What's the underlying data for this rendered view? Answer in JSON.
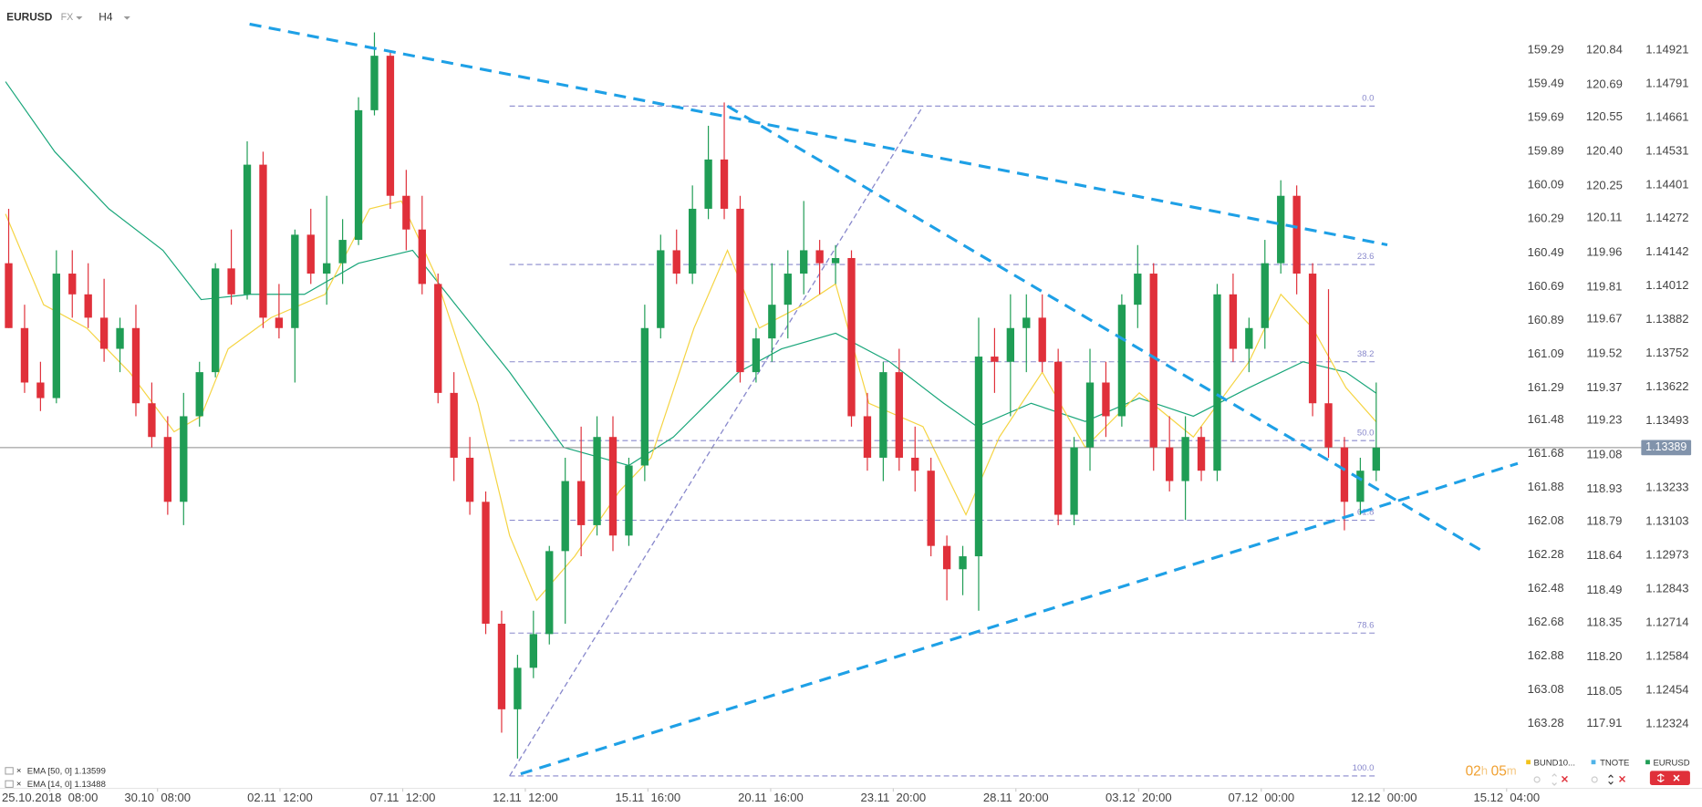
{
  "chart_data": {
    "type": "candlestick",
    "symbol": "EURUSD",
    "market": "FX",
    "timeframe": "H4",
    "up_color": "#1f9d55",
    "down_color": "#e0303a",
    "xlim": [
      -0.546,
      95.02
    ],
    "xticks": [
      {
        "value": 2.59,
        "label": "25.10.2018  08:00"
      },
      {
        "value": 9.36,
        "label": "30.10  08:00"
      },
      {
        "value": 17.06,
        "label": "02.11  12:00"
      },
      {
        "value": 24.78,
        "label": "07.11  12:00"
      },
      {
        "value": 32.49,
        "label": "12.11  12:00"
      },
      {
        "value": 40.2,
        "label": "15.11  16:00"
      },
      {
        "value": 47.92,
        "label": "20.11  16:00"
      },
      {
        "value": 55.63,
        "label": "23.11  20:00"
      },
      {
        "value": 63.34,
        "label": "28.11  20:00"
      },
      {
        "value": 71.06,
        "label": "03.12  20:00"
      },
      {
        "value": 78.77,
        "label": "07.12  00:00"
      },
      {
        "value": 86.48,
        "label": "12.12  00:00"
      },
      {
        "value": 94.2,
        "label": "15.12  04:00"
      }
    ],
    "ylim": [
      1.12075,
      1.15115
    ],
    "candles": [
      [
        1.141,
        1.1431,
        1.1385,
        1.1385
      ],
      [
        1.1385,
        1.1394,
        1.136,
        1.1364
      ],
      [
        1.1364,
        1.1372,
        1.1353,
        1.1358
      ],
      [
        1.1358,
        1.1415,
        1.1356,
        1.1406
      ],
      [
        1.1406,
        1.1415,
        1.1389,
        1.1398
      ],
      [
        1.1398,
        1.141,
        1.1385,
        1.1389
      ],
      [
        1.1389,
        1.1404,
        1.1372,
        1.1377
      ],
      [
        1.1377,
        1.1389,
        1.1368,
        1.1385
      ],
      [
        1.1385,
        1.1394,
        1.1351,
        1.1356
      ],
      [
        1.1356,
        1.1364,
        1.1339,
        1.1343
      ],
      [
        1.1343,
        1.1351,
        1.1313,
        1.1318
      ],
      [
        1.1318,
        1.136,
        1.1309,
        1.1351
      ],
      [
        1.1351,
        1.1372,
        1.1347,
        1.1368
      ],
      [
        1.1368,
        1.141,
        1.1366,
        1.1408
      ],
      [
        1.1408,
        1.1423,
        1.1394,
        1.1398
      ],
      [
        1.1398,
        1.1457,
        1.1396,
        1.1448
      ],
      [
        1.1448,
        1.1453,
        1.1385,
        1.1389
      ],
      [
        1.1389,
        1.1402,
        1.1381,
        1.1385
      ],
      [
        1.1385,
        1.1423,
        1.1364,
        1.1421
      ],
      [
        1.1421,
        1.1431,
        1.1402,
        1.1406
      ],
      [
        1.1406,
        1.1436,
        1.1394,
        1.141
      ],
      [
        1.141,
        1.1427,
        1.1402,
        1.1419
      ],
      [
        1.1419,
        1.1474,
        1.1417,
        1.1469
      ],
      [
        1.1469,
        1.1499,
        1.1467,
        1.149
      ],
      [
        1.149,
        1.1492,
        1.1431,
        1.1436
      ],
      [
        1.1436,
        1.1446,
        1.1415,
        1.1423
      ],
      [
        1.1423,
        1.1436,
        1.1398,
        1.1402
      ],
      [
        1.1402,
        1.1406,
        1.1356,
        1.136
      ],
      [
        1.136,
        1.1368,
        1.1326,
        1.1335
      ],
      [
        1.1335,
        1.1343,
        1.1313,
        1.1318
      ],
      [
        1.1318,
        1.1322,
        1.1267,
        1.1271
      ],
      [
        1.1271,
        1.1276,
        1.1229,
        1.1238
      ],
      [
        1.1238,
        1.1259,
        1.1219,
        1.1254
      ],
      [
        1.1254,
        1.1276,
        1.125,
        1.1267
      ],
      [
        1.1267,
        1.1301,
        1.1263,
        1.1299
      ],
      [
        1.1299,
        1.1335,
        1.1271,
        1.1326
      ],
      [
        1.1326,
        1.1347,
        1.1297,
        1.1309
      ],
      [
        1.1309,
        1.1351,
        1.1305,
        1.1343
      ],
      [
        1.1343,
        1.1351,
        1.1299,
        1.1305
      ],
      [
        1.1305,
        1.1335,
        1.1301,
        1.1332
      ],
      [
        1.1332,
        1.1394,
        1.1326,
        1.1385
      ],
      [
        1.1385,
        1.1421,
        1.1381,
        1.1415
      ],
      [
        1.1415,
        1.1423,
        1.1402,
        1.1406
      ],
      [
        1.1406,
        1.144,
        1.1402,
        1.1431
      ],
      [
        1.1431,
        1.1463,
        1.1427,
        1.145
      ],
      [
        1.145,
        1.1472,
        1.1427,
        1.1431
      ],
      [
        1.1431,
        1.1436,
        1.1364,
        1.1368
      ],
      [
        1.1368,
        1.1385,
        1.1364,
        1.1381
      ],
      [
        1.1381,
        1.141,
        1.1372,
        1.1394
      ],
      [
        1.1394,
        1.1415,
        1.1381,
        1.1406
      ],
      [
        1.1406,
        1.1434,
        1.1398,
        1.1415
      ],
      [
        1.1415,
        1.1419,
        1.1398,
        1.141
      ],
      [
        1.141,
        1.1417,
        1.1402,
        1.1412
      ],
      [
        1.1412,
        1.1415,
        1.1347,
        1.1351
      ],
      [
        1.1351,
        1.136,
        1.133,
        1.1335
      ],
      [
        1.1335,
        1.1372,
        1.1326,
        1.1368
      ],
      [
        1.1368,
        1.1377,
        1.133,
        1.1335
      ],
      [
        1.1335,
        1.1347,
        1.1322,
        1.133
      ],
      [
        1.133,
        1.1335,
        1.1297,
        1.1301
      ],
      [
        1.1301,
        1.1305,
        1.128,
        1.1292
      ],
      [
        1.1292,
        1.1301,
        1.1282,
        1.1297
      ],
      [
        1.1297,
        1.1389,
        1.1276,
        1.1374
      ],
      [
        1.1374,
        1.1385,
        1.136,
        1.1372
      ],
      [
        1.1372,
        1.1398,
        1.1351,
        1.1385
      ],
      [
        1.1385,
        1.1398,
        1.1368,
        1.1389
      ],
      [
        1.1389,
        1.1398,
        1.1368,
        1.1372
      ],
      [
        1.1372,
        1.1377,
        1.1309,
        1.1313
      ],
      [
        1.1313,
        1.1343,
        1.1309,
        1.1339
      ],
      [
        1.1339,
        1.1377,
        1.133,
        1.1364
      ],
      [
        1.1364,
        1.1372,
        1.1343,
        1.1351
      ],
      [
        1.1351,
        1.1398,
        1.1347,
        1.1394
      ],
      [
        1.1394,
        1.1417,
        1.1385,
        1.1406
      ],
      [
        1.1406,
        1.141,
        1.133,
        1.1339
      ],
      [
        1.1339,
        1.1351,
        1.1322,
        1.1326
      ],
      [
        1.1326,
        1.1351,
        1.1311,
        1.1343
      ],
      [
        1.1343,
        1.1347,
        1.1326,
        1.133
      ],
      [
        1.133,
        1.1402,
        1.1326,
        1.1398
      ],
      [
        1.1398,
        1.1406,
        1.1372,
        1.1377
      ],
      [
        1.1377,
        1.1389,
        1.1368,
        1.1385
      ],
      [
        1.1385,
        1.1419,
        1.1377,
        1.141
      ],
      [
        1.141,
        1.1442,
        1.1406,
        1.1436
      ],
      [
        1.1436,
        1.144,
        1.1398,
        1.1406
      ],
      [
        1.1406,
        1.141,
        1.1351,
        1.1356
      ],
      [
        1.1356,
        1.14,
        1.1335,
        1.1339
      ],
      [
        1.1339,
        1.1343,
        1.1307,
        1.1318
      ],
      [
        1.1318,
        1.1335,
        1.1313,
        1.133
      ],
      [
        1.133,
        1.1364,
        1.1326,
        1.13389
      ]
    ],
    "current_price": 1.13389,
    "current_price_color": "#8193ab",
    "axes": [
      {
        "name": "BUND10...",
        "color": "#f2c21a",
        "ylim": [
          163.663,
          158.992
        ],
        "yticks": [
          159.29,
          159.49,
          159.69,
          159.89,
          160.09,
          160.29,
          160.49,
          160.69,
          160.89,
          161.09,
          161.29,
          161.48,
          161.68,
          161.88,
          162.08,
          162.28,
          162.48,
          162.68,
          162.88,
          163.08,
          163.28
        ]
      },
      {
        "name": "TNOTE",
        "color": "#4fb3e8",
        "ylim": [
          117.629,
          121.059
        ],
        "yticks": [
          120.84,
          120.69,
          120.55,
          {
            "value": 120.4,
            "label": "120.40"
          },
          120.25,
          120.11,
          119.96,
          119.81,
          119.67,
          119.52,
          119.37,
          119.23,
          119.08,
          118.93,
          118.79,
          118.64,
          118.49,
          118.35,
          {
            "value": 118.2,
            "label": "118.20"
          },
          118.05,
          117.91
        ]
      },
      {
        "name": "EURUSD",
        "color": "#1f9d55",
        "ylim": [
          1.12075,
          1.15115
        ],
        "yticks": [
          1.14921,
          1.14791,
          1.14661,
          1.14531,
          1.14401,
          1.14272,
          1.14142,
          1.14012,
          1.13882,
          1.13752,
          1.13622,
          1.13493,
          1.13233,
          1.13103,
          1.12973,
          1.12843,
          1.12714,
          1.12584,
          1.12454,
          1.12324
        ]
      }
    ],
    "ema": [
      {
        "name": "EMA [50, 0]",
        "value": 1.13599,
        "color": "#19a67a",
        "x": [
          -0.2,
          2.9,
          6.3,
          9.7,
          12.1,
          15.2,
          18.6,
          22.0,
          25.4,
          28.1,
          31.5,
          34.9,
          39.0,
          41.8,
          45.9,
          48.6,
          52.0,
          55.4,
          58.8,
          60.9,
          64.3,
          67.7,
          71.1,
          74.5,
          78.0,
          81.4,
          84.1,
          86
        ],
        "values": [
          1.148,
          1.1453,
          1.1431,
          1.1415,
          1.1396,
          1.1398,
          1.1398,
          1.141,
          1.1415,
          1.1394,
          1.1368,
          1.1339,
          1.1332,
          1.1343,
          1.1368,
          1.1377,
          1.1383,
          1.1372,
          1.1356,
          1.1347,
          1.1356,
          1.1349,
          1.1358,
          1.1351,
          1.1362,
          1.1372,
          1.1368,
          1.13599
        ]
      },
      {
        "name": "EMA [14, 0]",
        "value": 1.13488,
        "color": "#f5d442",
        "x": [
          -0.2,
          2.2,
          4.9,
          7.6,
          10.4,
          12.1,
          13.8,
          16.5,
          19.9,
          22.7,
          24.7,
          26.8,
          29.5,
          31.5,
          33.2,
          35.6,
          38.4,
          40.4,
          43.1,
          45.2,
          47.2,
          50.0,
          52.0,
          54.1,
          57.5,
          60.2,
          62.3,
          65.0,
          67.7,
          71.1,
          74.5,
          78.0,
          80.0,
          82.0,
          84.1,
          86
        ],
        "values": [
          1.1429,
          1.1394,
          1.1385,
          1.1368,
          1.1345,
          1.1351,
          1.1377,
          1.1389,
          1.1398,
          1.1431,
          1.1434,
          1.1406,
          1.1356,
          1.1305,
          1.128,
          1.1297,
          1.1322,
          1.1335,
          1.1385,
          1.1415,
          1.1385,
          1.1394,
          1.1402,
          1.1356,
          1.1347,
          1.1313,
          1.1343,
          1.1368,
          1.1339,
          1.136,
          1.1343,
          1.1372,
          1.1398,
          1.1385,
          1.1362,
          1.13488
        ]
      }
    ],
    "fib": {
      "color": "#8888cc",
      "x": [
        31.5,
        86
      ],
      "levels": [
        {
          "value": 1.14706,
          "label": "0.0"
        },
        {
          "value": 1.14095,
          "label": "23.6"
        },
        {
          "value": 1.1372,
          "label": "38.2"
        },
        {
          "value": 1.13416,
          "label": "50.0"
        },
        {
          "value": 1.13109,
          "label": "61.8"
        },
        {
          "value": 1.12674,
          "label": "78.6"
        },
        {
          "value": 1.12123,
          "label": "100.0"
        }
      ],
      "diagonal": {
        "x": [
          31.5,
          57.5
        ],
        "values": [
          1.12123,
          1.14706
        ]
      }
    },
    "trendline_color": "#1ea0e6",
    "trendlines": [
      {
        "x": [
          15.15,
          86.7
        ],
        "values": [
          1.15022,
          1.14171
        ]
      },
      {
        "x": [
          45.2,
          92.8
        ],
        "values": [
          1.14706,
          1.12986
        ]
      },
      {
        "x": [
          32.2,
          94.9
        ],
        "values": [
          1.12131,
          1.13328
        ]
      }
    ],
    "countdown": [
      "02",
      "h",
      "05",
      "m"
    ]
  }
}
